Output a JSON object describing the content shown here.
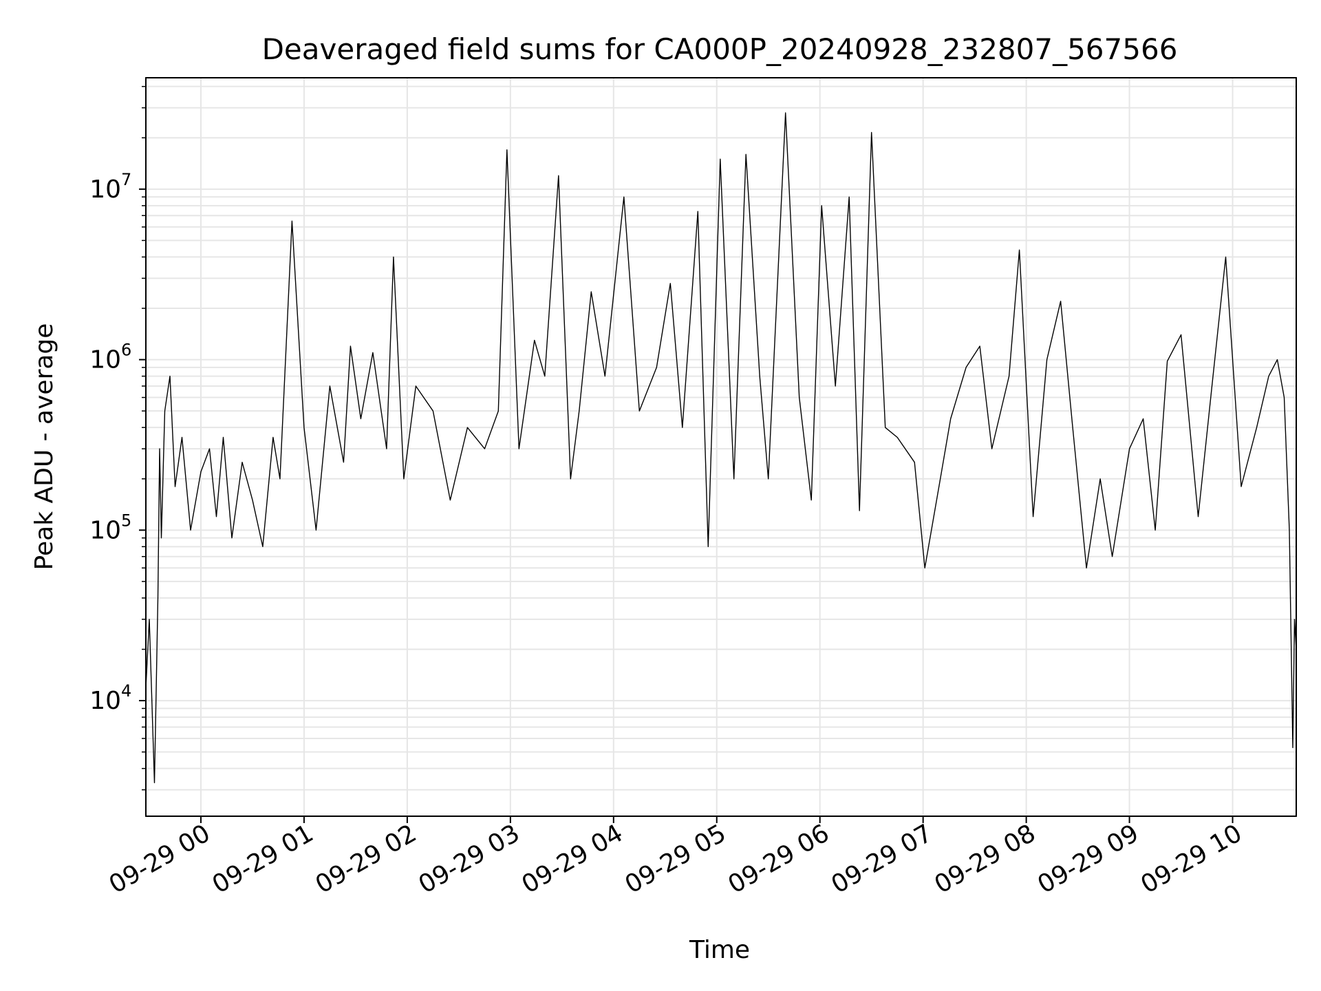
{
  "chart_data": {
    "type": "line",
    "title": "Deaveraged field sums for CA000P_20240928_232807_567566",
    "xlabel": "Time",
    "ylabel": "Peak ADU - average",
    "yscale": "log",
    "ylim": [
      2100,
      45000000
    ],
    "xlim": [
      "09-28 23:28",
      "09-29 10:37"
    ],
    "grid": "on",
    "line_color": "#000000",
    "grid_color": "#e6e6e6",
    "x_ticks": [
      "09-29 00",
      "09-29 01",
      "09-29 02",
      "09-29 03",
      "09-29 04",
      "09-29 05",
      "09-29 06",
      "09-29 07",
      "09-29 08",
      "09-29 09",
      "09-29 10"
    ],
    "y_ticks": [
      {
        "value": 10000,
        "base": "10",
        "exp": "4"
      },
      {
        "value": 100000,
        "base": "10",
        "exp": "5"
      },
      {
        "value": 1000000,
        "base": "10",
        "exp": "6"
      },
      {
        "value": 10000000,
        "base": "10",
        "exp": "7"
      }
    ],
    "series": [
      {
        "x": [
          "09-28 23:28",
          "09-28 23:30",
          "09-28 23:33",
          "09-28 23:35",
          "09-28 23:36",
          "09-28 23:37",
          "09-28 23:39",
          "09-28 23:42",
          "09-28 23:45",
          "09-28 23:49",
          "09-28 23:54",
          "09-29 00:00",
          "09-29 00:05",
          "09-29 00:09",
          "09-29 00:13",
          "09-29 00:18",
          "09-29 00:24",
          "09-29 00:30",
          "09-29 00:36",
          "09-29 00:42",
          "09-29 00:46",
          "09-29 00:53",
          "09-29 01:00",
          "09-29 01:07",
          "09-29 01:15",
          "09-29 01:23",
          "09-29 01:27",
          "09-29 01:33",
          "09-29 01:40",
          "09-29 01:48",
          "09-29 01:52",
          "09-29 01:58",
          "09-29 02:05",
          "09-29 02:15",
          "09-29 02:25",
          "09-29 02:35",
          "09-29 02:45",
          "09-29 02:53",
          "09-29 02:58",
          "09-29 03:05",
          "09-29 03:14",
          "09-29 03:20",
          "09-29 03:28",
          "09-29 03:35",
          "09-29 03:40",
          "09-29 03:47",
          "09-29 03:55",
          "09-29 04:06",
          "09-29 04:15",
          "09-29 04:25",
          "09-29 04:33",
          "09-29 04:40",
          "09-29 04:49",
          "09-29 04:55",
          "09-29 05:02",
          "09-29 05:10",
          "09-29 05:17",
          "09-29 05:25",
          "09-29 05:30",
          "09-29 05:40",
          "09-29 05:48",
          "09-29 05:55",
          "09-29 06:01",
          "09-29 06:09",
          "09-29 06:17",
          "09-29 06:23",
          "09-29 06:30",
          "09-29 06:38",
          "09-29 06:45",
          "09-29 06:55",
          "09-29 07:01",
          "09-29 07:10",
          "09-29 07:16",
          "09-29 07:25",
          "09-29 07:33",
          "09-29 07:40",
          "09-29 07:50",
          "09-29 07:56",
          "09-29 08:04",
          "09-29 08:12",
          "09-29 08:20",
          "09-29 08:27",
          "09-29 08:35",
          "09-29 08:43",
          "09-29 08:50",
          "09-29 09:00",
          "09-29 09:08",
          "09-29 09:15",
          "09-29 09:22",
          "09-29 09:30",
          "09-29 09:40",
          "09-29 09:48",
          "09-29 09:56",
          "09-29 10:05",
          "09-29 10:14",
          "09-29 10:21",
          "09-29 10:26",
          "09-29 10:30",
          "09-29 10:33",
          "09-29 10:35",
          "09-29 10:36",
          "09-29 10:37"
        ],
        "y": [
          12000,
          30000,
          3300,
          40000,
          300000,
          90000,
          500000,
          800000,
          180000,
          350000,
          100000,
          220000,
          300000,
          120000,
          350000,
          90000,
          250000,
          150000,
          80000,
          350000,
          200000,
          6500000,
          400000,
          100000,
          700000,
          250000,
          1200000,
          450000,
          1100000,
          300000,
          4000000,
          200000,
          700000,
          500000,
          150000,
          400000,
          300000,
          500000,
          17000000,
          300000,
          1300000,
          800000,
          12000000,
          200000,
          500000,
          2500000,
          800000,
          9000000,
          500000,
          900000,
          2800000,
          400000,
          7400000,
          80000,
          15000000,
          200000,
          16000000,
          800000,
          200000,
          28000000,
          600000,
          150000,
          8000000,
          700000,
          9000000,
          130000,
          21500000,
          400000,
          350000,
          250000,
          60000,
          200000,
          450000,
          900000,
          1200000,
          300000,
          800000,
          4400000,
          120000,
          1000000,
          2200000,
          400000,
          60000,
          200000,
          70000,
          300000,
          450000,
          100000,
          980000,
          1400000,
          120000,
          700000,
          4000000,
          180000,
          400000,
          800000,
          1000000,
          600000,
          100000,
          5300,
          30000,
          20000
        ],
        "name": ""
      }
    ]
  }
}
